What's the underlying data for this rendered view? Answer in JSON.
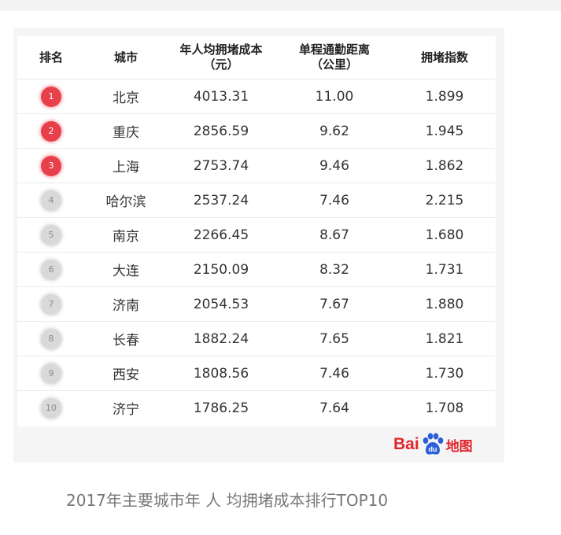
{
  "table": {
    "headers": {
      "rank": "排名",
      "city": "城市",
      "cost_line1": "年人均拥堵成本",
      "cost_line2": "（元）",
      "dist_line1": "单程通勤距离",
      "dist_line2": "（公里）",
      "index": "拥堵指数"
    },
    "rows": [
      {
        "rank": "1",
        "city": "北京",
        "cost": "4013.31",
        "distance": "11.00",
        "index": "1.899"
      },
      {
        "rank": "2",
        "city": "重庆",
        "cost": "2856.59",
        "distance": "9.62",
        "index": "1.945"
      },
      {
        "rank": "3",
        "city": "上海",
        "cost": "2753.74",
        "distance": "9.46",
        "index": "1.862"
      },
      {
        "rank": "4",
        "city": "哈尔滨",
        "cost": "2537.24",
        "distance": "7.46",
        "index": "2.215"
      },
      {
        "rank": "5",
        "city": "南京",
        "cost": "2266.45",
        "distance": "8.67",
        "index": "1.680"
      },
      {
        "rank": "6",
        "city": "大连",
        "cost": "2150.09",
        "distance": "8.32",
        "index": "1.731"
      },
      {
        "rank": "7",
        "city": "济南",
        "cost": "2054.53",
        "distance": "7.67",
        "index": "1.880"
      },
      {
        "rank": "8",
        "city": "长春",
        "cost": "1882.24",
        "distance": "7.65",
        "index": "1.821"
      },
      {
        "rank": "9",
        "city": "西安",
        "cost": "1808.56",
        "distance": "7.46",
        "index": "1.730"
      },
      {
        "rank": "10",
        "city": "济宁",
        "cost": "1786.25",
        "distance": "7.64",
        "index": "1.708"
      }
    ]
  },
  "logo": {
    "latin": "Bai",
    "paw_text": "du",
    "chinese": "地图"
  },
  "caption": "2017年主要城市年 人 均拥堵成本排行TOP10",
  "colors": {
    "top_rank_badge": "#e8404a",
    "other_rank_badge": "#d9d9d9",
    "logo_red": "#e1262b",
    "caption_text": "#777777"
  },
  "icons": {
    "logo_mark": "baidu-paw-icon"
  }
}
